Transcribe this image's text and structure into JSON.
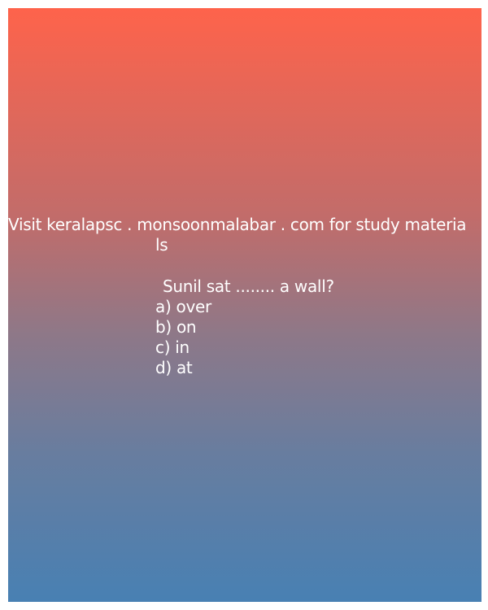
{
  "promo": {
    "line1": "Visit keralapsc . monsoonmalabar . com for study materia",
    "line2": "ls"
  },
  "question": {
    "text": "Sunil sat ........ a wall?",
    "options": [
      {
        "label": "a) over"
      },
      {
        "label": "b) on"
      },
      {
        "label": "c) in"
      },
      {
        "label": "d) at"
      }
    ]
  },
  "colors": {
    "gradient_top": "#fe634b",
    "gradient_bottom": "#4880b3",
    "text": "#ffffff"
  }
}
